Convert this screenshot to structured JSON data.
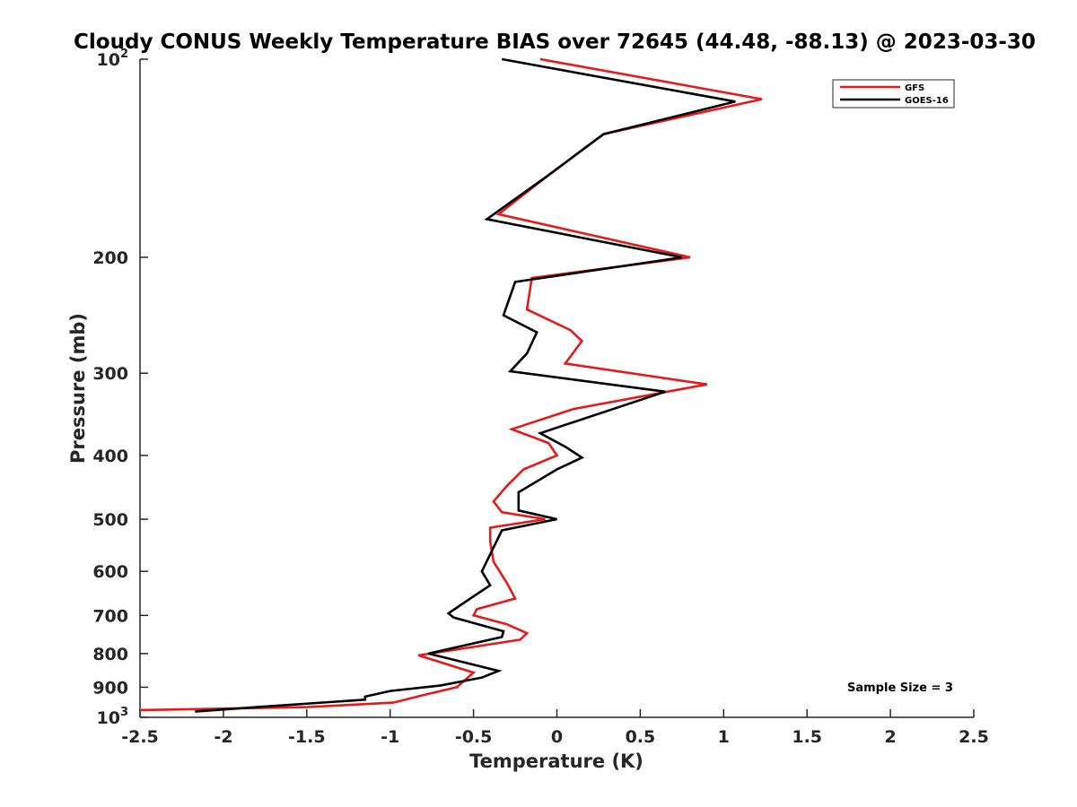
{
  "chart_data": {
    "type": "line",
    "title": "Cloudy CONUS Weekly Temperature BIAS over 72645 (44.48, -88.13) @ 2023-03-30",
    "xlabel": "Temperature (K)",
    "ylabel": "Pressure (mb)",
    "xlim": [
      -2.5,
      2.5
    ],
    "ylim": [
      100,
      1000
    ],
    "y_scale": "log",
    "y_reversed": true,
    "grid": false,
    "legend_position": "top-right",
    "x_ticks": [
      {
        "value": -2.5,
        "label": "-2.5"
      },
      {
        "value": -2,
        "label": "-2"
      },
      {
        "value": -1.5,
        "label": "-1.5"
      },
      {
        "value": -1,
        "label": "-1"
      },
      {
        "value": -0.5,
        "label": "-0.5"
      },
      {
        "value": 0,
        "label": "0"
      },
      {
        "value": 0.5,
        "label": "0.5"
      },
      {
        "value": 1,
        "label": "1"
      },
      {
        "value": 1.5,
        "label": "1.5"
      },
      {
        "value": 2,
        "label": "2"
      },
      {
        "value": 2.5,
        "label": "2.5"
      }
    ],
    "y_ticks": [
      {
        "value": 100,
        "label": "10",
        "sup": "2"
      },
      {
        "value": 200,
        "label": "200",
        "sup": ""
      },
      {
        "value": 300,
        "label": "300",
        "sup": ""
      },
      {
        "value": 400,
        "label": "400",
        "sup": ""
      },
      {
        "value": 500,
        "label": "500",
        "sup": ""
      },
      {
        "value": 600,
        "label": "600",
        "sup": ""
      },
      {
        "value": 700,
        "label": "700",
        "sup": ""
      },
      {
        "value": 800,
        "label": "800",
        "sup": ""
      },
      {
        "value": 900,
        "label": "900",
        "sup": ""
      },
      {
        "value": 1000,
        "label": "10",
        "sup": "3"
      }
    ],
    "series": [
      {
        "name": "GFS",
        "color": "#e41a1c",
        "points": [
          [
            -0.1,
            100
          ],
          [
            1.23,
            115
          ],
          [
            0.28,
            130
          ],
          [
            -0.05,
            150
          ],
          [
            -0.35,
            172
          ],
          [
            0.8,
            200
          ],
          [
            -0.15,
            215
          ],
          [
            -0.18,
            240
          ],
          [
            0.08,
            258
          ],
          [
            0.15,
            268
          ],
          [
            0.05,
            290
          ],
          [
            0.9,
            312
          ],
          [
            0.1,
            340
          ],
          [
            -0.27,
            365
          ],
          [
            -0.05,
            383
          ],
          [
            0.0,
            400
          ],
          [
            -0.2,
            420
          ],
          [
            -0.3,
            445
          ],
          [
            -0.38,
            470
          ],
          [
            -0.33,
            488
          ],
          [
            -0.07,
            500
          ],
          [
            -0.4,
            515
          ],
          [
            -0.4,
            540
          ],
          [
            -0.38,
            580
          ],
          [
            -0.3,
            625
          ],
          [
            -0.25,
            660
          ],
          [
            -0.48,
            685
          ],
          [
            -0.5,
            700
          ],
          [
            -0.3,
            722
          ],
          [
            -0.18,
            745
          ],
          [
            -0.22,
            762
          ],
          [
            -0.83,
            805
          ],
          [
            -0.5,
            855
          ],
          [
            -0.6,
            900
          ],
          [
            -0.8,
            925
          ],
          [
            -0.98,
            950
          ],
          [
            -1.5,
            965
          ],
          [
            -2.5,
            975
          ]
        ]
      },
      {
        "name": "GOES-16",
        "color": "#000000",
        "points": [
          [
            -0.33,
            100
          ],
          [
            1.07,
            116
          ],
          [
            0.28,
            130
          ],
          [
            -0.05,
            150
          ],
          [
            -0.42,
            175
          ],
          [
            0.75,
            200
          ],
          [
            -0.25,
            218
          ],
          [
            -0.32,
            245
          ],
          [
            -0.12,
            260
          ],
          [
            -0.18,
            280
          ],
          [
            -0.28,
            298
          ],
          [
            0.65,
            320
          ],
          [
            -0.1,
            370
          ],
          [
            0.05,
            388
          ],
          [
            0.15,
            403
          ],
          [
            0.0,
            420
          ],
          [
            -0.23,
            455
          ],
          [
            -0.23,
            485
          ],
          [
            0.0,
            500
          ],
          [
            -0.33,
            520
          ],
          [
            -0.45,
            600
          ],
          [
            -0.4,
            630
          ],
          [
            -0.5,
            655
          ],
          [
            -0.65,
            695
          ],
          [
            -0.62,
            705
          ],
          [
            -0.32,
            740
          ],
          [
            -0.33,
            755
          ],
          [
            -0.77,
            800
          ],
          [
            -0.35,
            850
          ],
          [
            -0.45,
            870
          ],
          [
            -0.7,
            895
          ],
          [
            -1.0,
            912
          ],
          [
            -1.15,
            930
          ],
          [
            -1.15,
            940
          ],
          [
            -1.8,
            965
          ],
          [
            -2.17,
            980
          ]
        ]
      }
    ],
    "legend": [
      {
        "name": "GFS",
        "color": "#e41a1c"
      },
      {
        "name": "GOES-16",
        "color": "#000000"
      }
    ],
    "annotations": [
      {
        "text": "Sample Size = 3",
        "position": "bottom-right"
      }
    ]
  }
}
